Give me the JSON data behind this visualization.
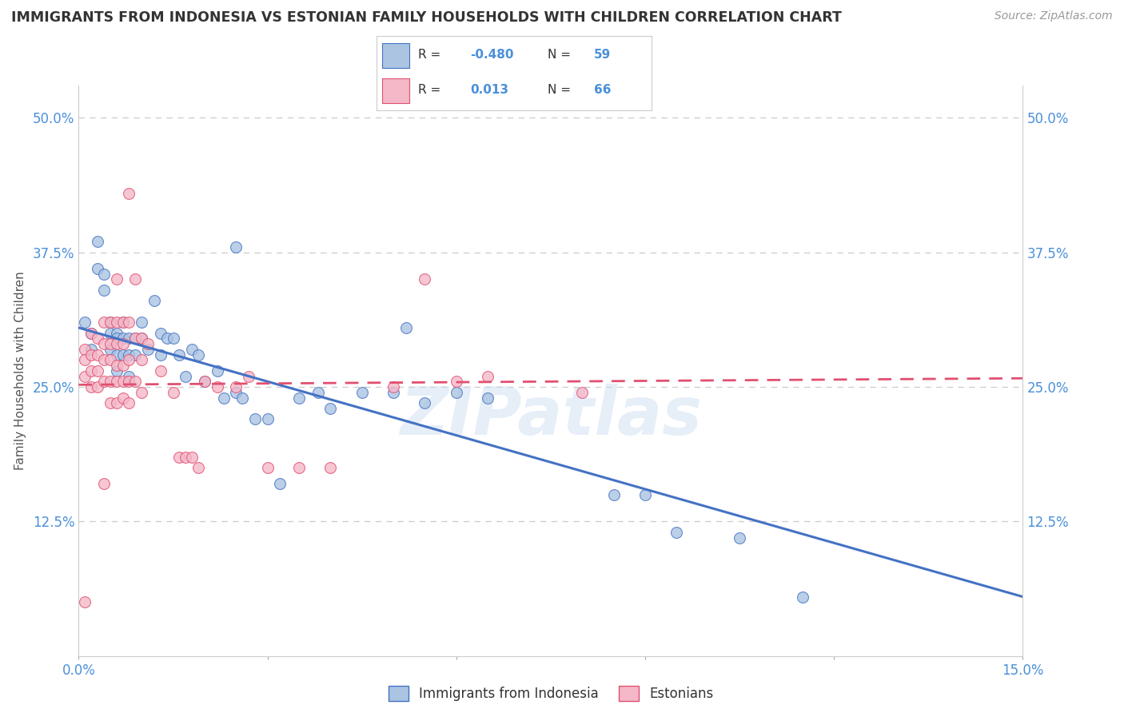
{
  "title": "IMMIGRANTS FROM INDONESIA VS ESTONIAN FAMILY HOUSEHOLDS WITH CHILDREN CORRELATION CHART",
  "source": "Source: ZipAtlas.com",
  "ylabel": "Family Households with Children",
  "ytick_labels": [
    "",
    "12.5%",
    "25.0%",
    "37.5%",
    "50.0%"
  ],
  "ytick_values": [
    0.0,
    0.125,
    0.25,
    0.375,
    0.5
  ],
  "xtick_labels": [
    "0.0%",
    "15.0%"
  ],
  "xtick_values": [
    0.0,
    0.15
  ],
  "xlim": [
    0.0,
    0.15
  ],
  "ylim": [
    0.0,
    0.53
  ],
  "legend_labels": [
    "Immigrants from Indonesia",
    "Estonians"
  ],
  "blue_R": "-0.480",
  "blue_N": "59",
  "pink_R": "0.013",
  "pink_N": "66",
  "blue_color": "#aac4e2",
  "blue_line_color": "#4472c4",
  "pink_color": "#f4b8c8",
  "pink_line_color": "#e05070",
  "blue_line_x0": 0.0,
  "blue_line_y0": 0.305,
  "blue_line_x1": 0.15,
  "blue_line_y1": 0.055,
  "pink_line_x0": 0.0,
  "pink_line_y0": 0.252,
  "pink_line_x1": 0.15,
  "pink_line_y1": 0.258,
  "blue_scatter": [
    [
      0.001,
      0.31
    ],
    [
      0.002,
      0.3
    ],
    [
      0.002,
      0.285
    ],
    [
      0.003,
      0.385
    ],
    [
      0.003,
      0.36
    ],
    [
      0.004,
      0.355
    ],
    [
      0.004,
      0.34
    ],
    [
      0.005,
      0.31
    ],
    [
      0.005,
      0.3
    ],
    [
      0.005,
      0.285
    ],
    [
      0.006,
      0.3
    ],
    [
      0.006,
      0.295
    ],
    [
      0.006,
      0.28
    ],
    [
      0.006,
      0.265
    ],
    [
      0.007,
      0.31
    ],
    [
      0.007,
      0.295
    ],
    [
      0.007,
      0.28
    ],
    [
      0.008,
      0.295
    ],
    [
      0.008,
      0.28
    ],
    [
      0.008,
      0.26
    ],
    [
      0.009,
      0.295
    ],
    [
      0.009,
      0.28
    ],
    [
      0.01,
      0.31
    ],
    [
      0.01,
      0.295
    ],
    [
      0.011,
      0.285
    ],
    [
      0.012,
      0.33
    ],
    [
      0.013,
      0.3
    ],
    [
      0.013,
      0.28
    ],
    [
      0.014,
      0.295
    ],
    [
      0.015,
      0.295
    ],
    [
      0.016,
      0.28
    ],
    [
      0.017,
      0.26
    ],
    [
      0.018,
      0.285
    ],
    [
      0.019,
      0.28
    ],
    [
      0.02,
      0.255
    ],
    [
      0.022,
      0.265
    ],
    [
      0.023,
      0.24
    ],
    [
      0.025,
      0.38
    ],
    [
      0.025,
      0.245
    ],
    [
      0.026,
      0.24
    ],
    [
      0.028,
      0.22
    ],
    [
      0.03,
      0.22
    ],
    [
      0.032,
      0.16
    ],
    [
      0.035,
      0.24
    ],
    [
      0.038,
      0.245
    ],
    [
      0.04,
      0.23
    ],
    [
      0.045,
      0.245
    ],
    [
      0.05,
      0.245
    ],
    [
      0.052,
      0.305
    ],
    [
      0.055,
      0.235
    ],
    [
      0.06,
      0.245
    ],
    [
      0.065,
      0.24
    ],
    [
      0.085,
      0.15
    ],
    [
      0.09,
      0.15
    ],
    [
      0.095,
      0.115
    ],
    [
      0.105,
      0.11
    ],
    [
      0.115,
      0.055
    ]
  ],
  "pink_scatter": [
    [
      0.001,
      0.05
    ],
    [
      0.001,
      0.285
    ],
    [
      0.001,
      0.275
    ],
    [
      0.001,
      0.26
    ],
    [
      0.002,
      0.3
    ],
    [
      0.002,
      0.28
    ],
    [
      0.002,
      0.265
    ],
    [
      0.002,
      0.25
    ],
    [
      0.003,
      0.295
    ],
    [
      0.003,
      0.28
    ],
    [
      0.003,
      0.265
    ],
    [
      0.003,
      0.25
    ],
    [
      0.004,
      0.31
    ],
    [
      0.004,
      0.29
    ],
    [
      0.004,
      0.275
    ],
    [
      0.004,
      0.255
    ],
    [
      0.004,
      0.16
    ],
    [
      0.005,
      0.31
    ],
    [
      0.005,
      0.29
    ],
    [
      0.005,
      0.275
    ],
    [
      0.005,
      0.255
    ],
    [
      0.005,
      0.235
    ],
    [
      0.006,
      0.35
    ],
    [
      0.006,
      0.31
    ],
    [
      0.006,
      0.29
    ],
    [
      0.006,
      0.27
    ],
    [
      0.006,
      0.255
    ],
    [
      0.006,
      0.235
    ],
    [
      0.007,
      0.31
    ],
    [
      0.007,
      0.29
    ],
    [
      0.007,
      0.27
    ],
    [
      0.007,
      0.255
    ],
    [
      0.007,
      0.24
    ],
    [
      0.008,
      0.43
    ],
    [
      0.008,
      0.31
    ],
    [
      0.008,
      0.275
    ],
    [
      0.008,
      0.255
    ],
    [
      0.008,
      0.235
    ],
    [
      0.009,
      0.35
    ],
    [
      0.009,
      0.295
    ],
    [
      0.009,
      0.255
    ],
    [
      0.01,
      0.295
    ],
    [
      0.01,
      0.275
    ],
    [
      0.01,
      0.245
    ],
    [
      0.011,
      0.29
    ],
    [
      0.013,
      0.265
    ],
    [
      0.015,
      0.245
    ],
    [
      0.016,
      0.185
    ],
    [
      0.017,
      0.185
    ],
    [
      0.018,
      0.185
    ],
    [
      0.019,
      0.175
    ],
    [
      0.02,
      0.255
    ],
    [
      0.022,
      0.25
    ],
    [
      0.025,
      0.25
    ],
    [
      0.027,
      0.26
    ],
    [
      0.03,
      0.175
    ],
    [
      0.035,
      0.175
    ],
    [
      0.04,
      0.175
    ],
    [
      0.05,
      0.25
    ],
    [
      0.055,
      0.35
    ],
    [
      0.06,
      0.255
    ],
    [
      0.065,
      0.26
    ],
    [
      0.08,
      0.245
    ]
  ],
  "watermark": "ZIPatlas",
  "background_color": "#ffffff",
  "grid_color": "#cccccc",
  "axis_label_color": "#4a90d9",
  "title_color": "#333333"
}
